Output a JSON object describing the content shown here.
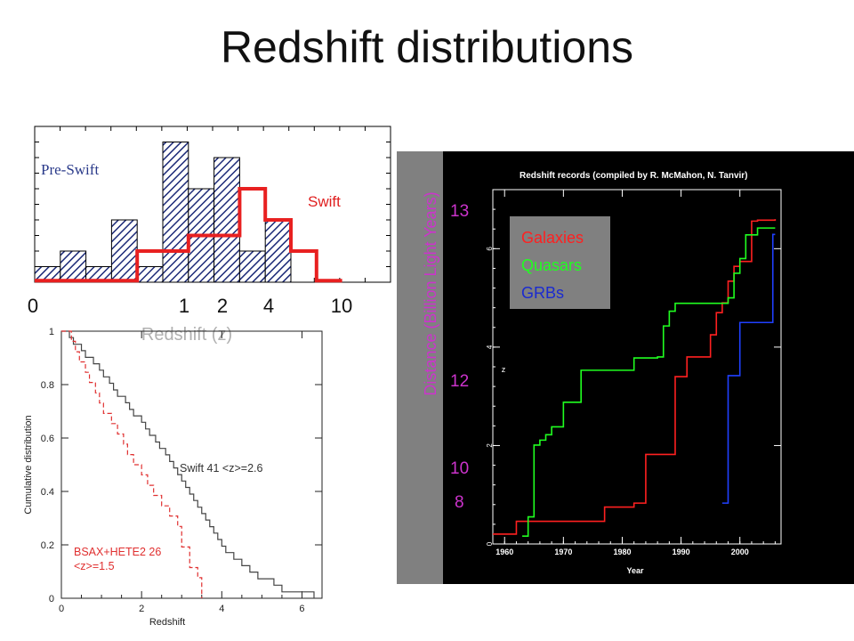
{
  "slide": {
    "title": "Redshift distributions"
  },
  "chart_data": [
    {
      "type": "bar",
      "series": [
        {
          "name": "Pre-Swift",
          "values": [
            1,
            2,
            1,
            4,
            1,
            9,
            6,
            8,
            2,
            4
          ]
        },
        {
          "name": "Swift",
          "values": [
            0,
            0,
            0,
            0,
            2,
            2,
            3,
            3,
            6,
            4,
            2,
            0
          ]
        }
      ],
      "text": {
        "pre": "Pre-Swift",
        "swift": "Swift"
      },
      "xlabel": "Redshift (z)",
      "xtick_labels": [
        "0",
        "1",
        "2",
        "4",
        "10"
      ],
      "ylim": [
        0,
        10
      ]
    },
    {
      "type": "line",
      "title": "",
      "xlabel": "Redshift",
      "ylabel": "Cumulative distribution",
      "xlim": [
        0,
        6.5
      ],
      "ylim": [
        0,
        1
      ],
      "xticks": [
        "0",
        "2",
        "4",
        "6"
      ],
      "yticks": [
        "0",
        "0.2",
        "0.4",
        "0.6",
        "0.8",
        "1"
      ],
      "series": [
        {
          "name": "Swift 41 <z>=2.6",
          "x": [
            0.1,
            0.2,
            0.3,
            0.5,
            0.6,
            0.8,
            0.95,
            1.05,
            1.2,
            1.3,
            1.4,
            1.6,
            1.7,
            1.8,
            2.0,
            2.1,
            2.2,
            2.35,
            2.45,
            2.6,
            2.7,
            2.8,
            2.9,
            3.0,
            3.1,
            3.2,
            3.3,
            3.4,
            3.5,
            3.6,
            3.7,
            3.8,
            3.9,
            4.0,
            4.1,
            4.3,
            4.5,
            4.7,
            4.9,
            5.3,
            5.5,
            6.3
          ],
          "y": [
            1.0,
            0.976,
            0.951,
            0.927,
            0.902,
            0.878,
            0.854,
            0.829,
            0.805,
            0.78,
            0.756,
            0.732,
            0.707,
            0.683,
            0.659,
            0.634,
            0.61,
            0.585,
            0.561,
            0.537,
            0.512,
            0.488,
            0.463,
            0.439,
            0.415,
            0.39,
            0.366,
            0.341,
            0.317,
            0.293,
            0.268,
            0.244,
            0.22,
            0.195,
            0.171,
            0.146,
            0.122,
            0.098,
            0.073,
            0.049,
            0.024,
            0.0
          ]
        },
        {
          "name": "BSAX+HETE2 26 <z>=1.5",
          "x": [
            0.1,
            0.25,
            0.35,
            0.45,
            0.6,
            0.7,
            0.85,
            0.95,
            1.05,
            1.25,
            1.4,
            1.55,
            1.65,
            1.8,
            2.0,
            2.15,
            2.3,
            2.5,
            2.7,
            2.9,
            3.0,
            3.2,
            3.4,
            3.5
          ],
          "y": [
            1.0,
            0.962,
            0.923,
            0.885,
            0.846,
            0.808,
            0.769,
            0.731,
            0.692,
            0.654,
            0.615,
            0.577,
            0.538,
            0.5,
            0.462,
            0.423,
            0.385,
            0.346,
            0.308,
            0.269,
            0.192,
            0.115,
            0.077,
            0.0
          ]
        }
      ],
      "labels": {
        "swift": "Swift 41 <z>=2.6",
        "bsax1": "BSAX+HETE2 26",
        "bsax2": "<z>=1.5"
      },
      "colors": {
        "swift": "#444444",
        "bsax": "#e03030"
      }
    },
    {
      "type": "line",
      "title": "Redshift records (compiled by R. McMahon, N. Tanvir)",
      "xlabel": "Year",
      "ylabel": "z",
      "ylabel_right": "Distance (Billion Light Years)",
      "distance_labels": [
        "13",
        "12",
        "10",
        "8"
      ],
      "xlim": [
        1958,
        2007
      ],
      "ylim": [
        0,
        7.2
      ],
      "xticks": [
        "1960",
        "1970",
        "1980",
        "1990",
        "2000"
      ],
      "yticks": [
        "0",
        "2",
        "4",
        "6"
      ],
      "legend": [
        "Galaxies",
        "Quasars",
        "GRBs"
      ],
      "colors": {
        "galaxies": "#ff2020",
        "quasars": "#20ff20",
        "grbs": "#2040ff",
        "background": "#000000",
        "legend_bg": "#808080",
        "distance": "#cc33cc"
      },
      "series": [
        {
          "name": "Galaxies",
          "x": [
            1958,
            1960,
            1962,
            1976,
            1977,
            1982,
            1984,
            1988,
            1989,
            1991,
            1993,
            1995,
            1996,
            1997,
            1998,
            1999,
            2000,
            2002,
            2003,
            2004,
            2006
          ],
          "y": [
            0.2,
            0.2,
            0.46,
            0.46,
            0.75,
            0.83,
            1.82,
            1.82,
            3.4,
            3.8,
            3.8,
            4.25,
            4.7,
            4.9,
            5.34,
            5.64,
            5.74,
            6.56,
            6.58,
            6.58,
            6.6
          ]
        },
        {
          "name": "Quasars",
          "x": [
            1963,
            1964,
            1965,
            1966,
            1967,
            1968,
            1970,
            1973,
            1976,
            1982,
            1984,
            1986,
            1987,
            1988,
            1989,
            1991,
            1998,
            1999,
            2000,
            2001,
            2003,
            2006
          ],
          "y": [
            0.16,
            0.55,
            2.01,
            2.11,
            2.22,
            2.38,
            2.88,
            3.53,
            3.53,
            3.78,
            3.78,
            3.8,
            4.43,
            4.73,
            4.89,
            4.89,
            5.0,
            5.5,
            5.8,
            6.28,
            6.42,
            6.42
          ]
        },
        {
          "name": "GRBs",
          "x": [
            1997,
            1998,
            2000,
            2005,
            2005.6,
            2006
          ],
          "y": [
            0.83,
            3.42,
            4.5,
            4.5,
            6.29,
            6.29
          ]
        }
      ]
    }
  ]
}
